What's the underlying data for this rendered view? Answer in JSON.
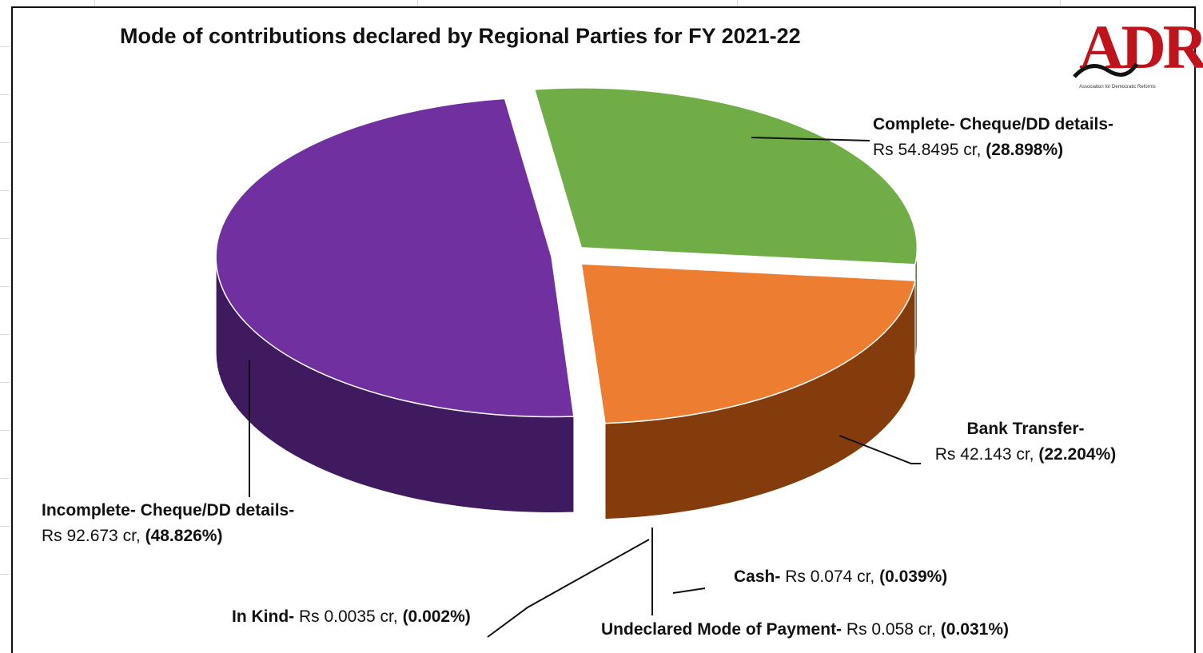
{
  "chart_data": {
    "type": "pie",
    "title": "Mode of contributions declared by Regional Parties for FY 2021-22",
    "unit": "Rs cr",
    "slices": [
      {
        "name": "Complete- Cheque/DD details-",
        "amount_text": "Rs 54.8495 cr",
        "percent_text": "(28.898%)",
        "value": 54.8495,
        "percent": 28.898,
        "color": "#70ad47",
        "side_color": "#375623"
      },
      {
        "name": "Bank Transfer-",
        "amount_text": "Rs 42.143 cr",
        "percent_text": "(22.204%)",
        "value": 42.143,
        "percent": 22.204,
        "color": "#ed7d31",
        "side_color": "#843c0c"
      },
      {
        "name": "Cash-",
        "amount_text": "Rs 0.074 cr",
        "percent_text": "(0.039%)",
        "value": 0.074,
        "percent": 0.039,
        "color": "#c00000",
        "side_color": "#600000"
      },
      {
        "name": "Undeclared Mode of Payment-",
        "amount_text": "Rs 0.058 cr",
        "percent_text": "(0.031%)",
        "value": 0.058,
        "percent": 0.031,
        "color": "#4472c4",
        "side_color": "#1f3864"
      },
      {
        "name": "In Kind-",
        "amount_text": "Rs 0.0035 cr",
        "percent_text": "(0.002%)",
        "value": 0.0035,
        "percent": 0.002,
        "color": "#a5a5a5",
        "side_color": "#525252"
      },
      {
        "name": "Incomplete- Cheque/DD details-",
        "amount_text": "Rs 92.673 cr",
        "percent_text": "(48.826%)",
        "value": 92.673,
        "percent": 48.826,
        "color": "#7030a0",
        "side_color": "#3f1a5e"
      }
    ]
  },
  "logo": {
    "text": "ADR",
    "subtitle": "Association for Democratic Reforms",
    "color": "#c0141c"
  }
}
